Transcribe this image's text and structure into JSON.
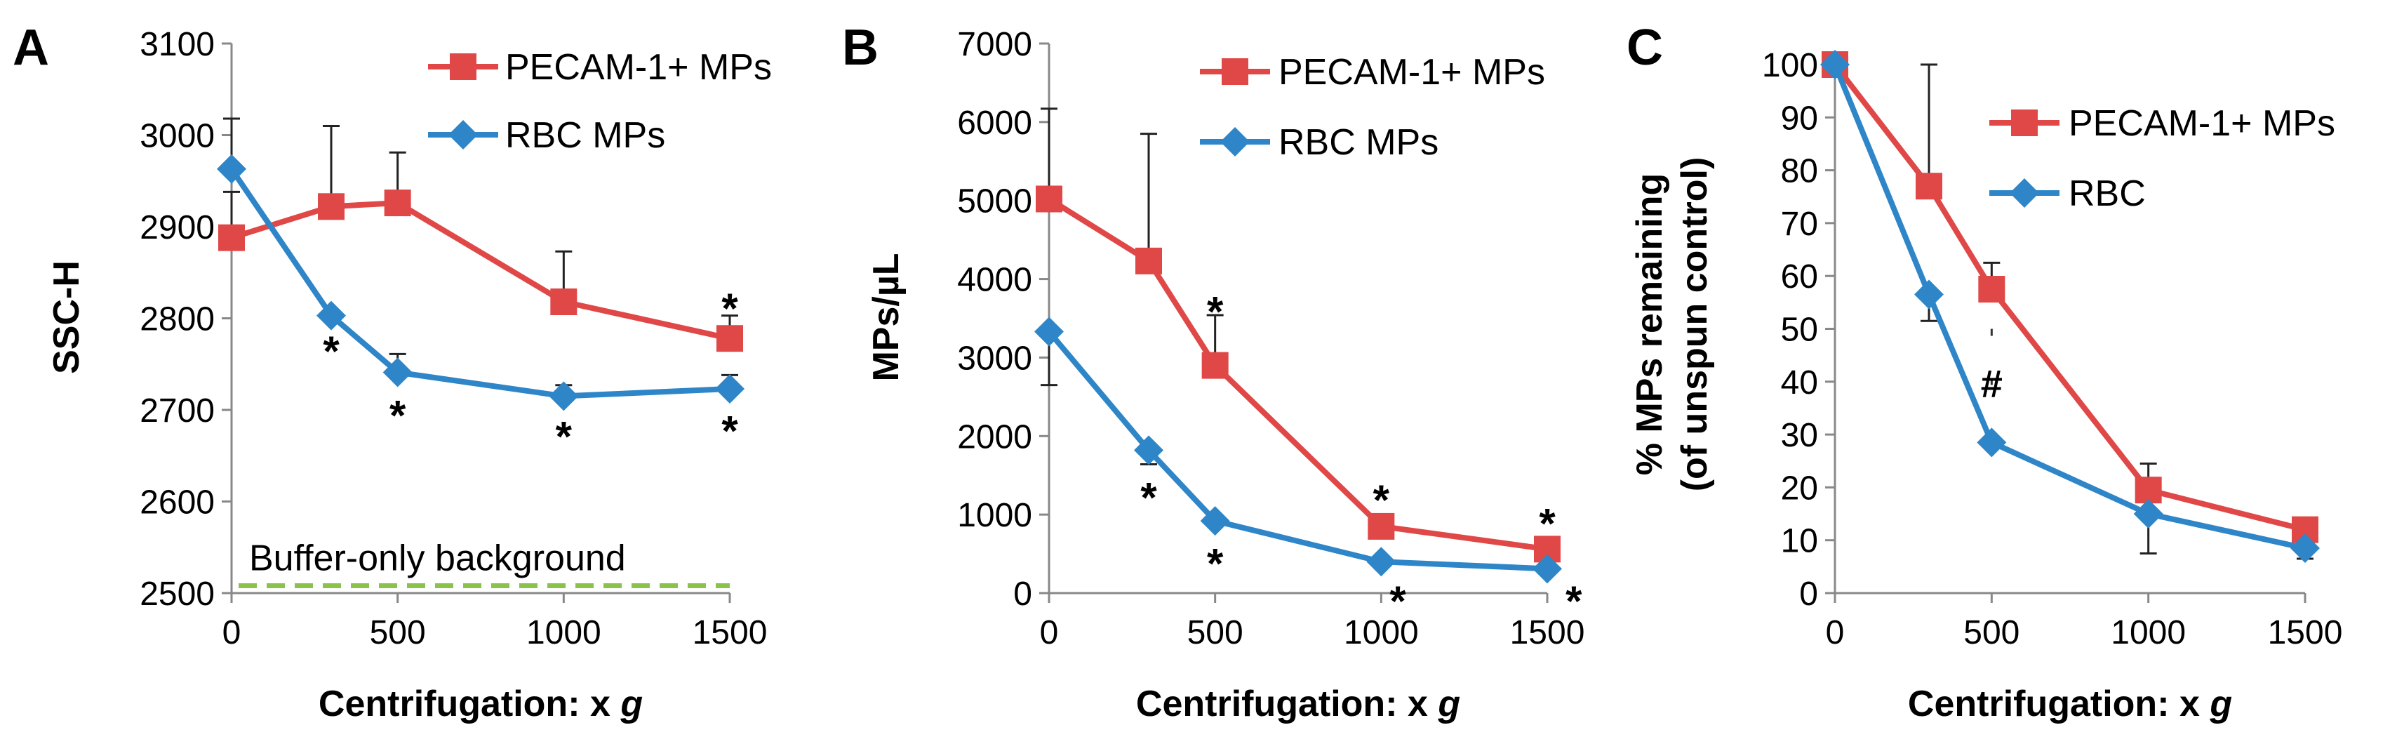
{
  "chart_data": [
    {
      "type": "line",
      "panel_label": "A",
      "title": "",
      "xlabel": "Centrifugation: x ",
      "xlabel_italic": "g",
      "ylabel": "SSC-H",
      "x": [
        0,
        300,
        500,
        1000,
        1500
      ],
      "xlim": [
        0,
        1500
      ],
      "xticks": [
        "0",
        "500",
        "1000",
        "1500"
      ],
      "xtick_values": [
        0,
        500,
        1000,
        1500
      ],
      "ylim": [
        2500,
        3100
      ],
      "yticks": [
        "2500",
        "2600",
        "2700",
        "2800",
        "2900",
        "3000",
        "3100"
      ],
      "ytick_values": [
        2500,
        2600,
        2700,
        2800,
        2900,
        3000,
        3100
      ],
      "legend_position": "top-right",
      "series": [
        {
          "name": "PECAM-1+ MPs",
          "color": "#e04848",
          "marker": "square",
          "values": [
            2888,
            2922,
            2926,
            2818,
            2778
          ],
          "err_up": [
            50,
            88,
            55,
            55,
            25
          ],
          "err_down": [
            0,
            0,
            0,
            0,
            0
          ]
        },
        {
          "name": "RBC MPs",
          "color": "#2e86c8",
          "marker": "diamond",
          "values": [
            2963,
            2803,
            2741,
            2715,
            2723
          ],
          "err_up": [
            55,
            0,
            20,
            12,
            15
          ],
          "err_down": [
            0,
            0,
            0,
            0,
            0
          ]
        }
      ],
      "annotations": [
        {
          "text": "*",
          "x": 300,
          "y": 2765
        },
        {
          "text": "*",
          "x": 500,
          "y": 2695
        },
        {
          "text": "*",
          "x": 1000,
          "y": 2672
        },
        {
          "text": "*",
          "x": 1500,
          "y": 2812
        },
        {
          "text": "*",
          "x": 1500,
          "y": 2678
        }
      ],
      "reference_line": {
        "label": "Buffer-only background",
        "y": 2508,
        "color": "#8bc34a",
        "style": "dashed"
      }
    },
    {
      "type": "line",
      "panel_label": "B",
      "title": "",
      "xlabel": "Centrifugation: x ",
      "xlabel_italic": "g",
      "ylabel": "MPs/µL",
      "x": [
        0,
        300,
        500,
        1000,
        1500
      ],
      "xlim": [
        0,
        1500
      ],
      "xticks": [
        "0",
        "500",
        "1000",
        "1500"
      ],
      "xtick_values": [
        0,
        500,
        1000,
        1500
      ],
      "ylim": [
        0,
        7000
      ],
      "yticks": [
        "0",
        "1000",
        "2000",
        "3000",
        "4000",
        "5000",
        "6000",
        "7000"
      ],
      "ytick_values": [
        0,
        1000,
        2000,
        3000,
        4000,
        5000,
        6000,
        7000
      ],
      "legend_position": "top-right",
      "series": [
        {
          "name": "PECAM-1+ MPs",
          "color": "#e04848",
          "marker": "square",
          "values": [
            5020,
            4230,
            2900,
            850,
            560
          ],
          "err_up": [
            1150,
            1620,
            640,
            0,
            0
          ],
          "err_down": [
            0,
            0,
            0,
            0,
            0
          ]
        },
        {
          "name": "RBC MPs",
          "color": "#2e86c8",
          "marker": "diamond",
          "values": [
            3330,
            1820,
            920,
            400,
            310
          ],
          "err_up": [
            0,
            0,
            0,
            0,
            0
          ],
          "err_down": [
            680,
            180,
            0,
            0,
            0
          ]
        }
      ],
      "annotations": [
        {
          "text": "*",
          "x": 300,
          "y": 1230
        },
        {
          "text": "*",
          "x": 500,
          "y": 3600
        },
        {
          "text": "*",
          "x": 500,
          "y": 390
        },
        {
          "text": "*",
          "x": 1000,
          "y": 1200
        },
        {
          "text": "*",
          "x": 1050,
          "y": -90
        },
        {
          "text": "*",
          "x": 1500,
          "y": 900
        },
        {
          "text": "*",
          "x": 1580,
          "y": -90
        }
      ]
    },
    {
      "type": "line",
      "panel_label": "C",
      "title": "",
      "xlabel": "Centrifugation: x ",
      "xlabel_italic": "g",
      "ylabel": "% MPs remaining",
      "ylabel2": "(of unspun control)",
      "x": [
        0,
        300,
        500,
        1000,
        1500
      ],
      "xlim": [
        0,
        1500
      ],
      "xticks": [
        "0",
        "500",
        "1000",
        "1500"
      ],
      "xtick_values": [
        0,
        500,
        1000,
        1500
      ],
      "ylim": [
        0,
        100
      ],
      "yticks": [
        "0",
        "10",
        "20",
        "30",
        "40",
        "50",
        "60",
        "70",
        "80",
        "90",
        "100"
      ],
      "ytick_values": [
        0,
        10,
        20,
        30,
        40,
        50,
        60,
        70,
        80,
        90,
        100
      ],
      "legend_position": "top-right",
      "series": [
        {
          "name": "PECAM-1+ MPs",
          "color": "#e04848",
          "marker": "square",
          "values": [
            100,
            77,
            57.5,
            19.5,
            12
          ],
          "err_up": [
            0,
            23,
            5,
            5,
            0
          ],
          "err_down": [
            0,
            0,
            0,
            0,
            0
          ]
        },
        {
          "name": "RBC",
          "color": "#2e86c8",
          "marker": "diamond",
          "values": [
            100,
            56.5,
            28.5,
            15,
            8.5
          ],
          "err_up": [
            0,
            0,
            0,
            0,
            0
          ],
          "err_down": [
            0,
            5,
            0,
            7.5,
            2
          ]
        }
      ],
      "annotations": [
        {
          "text": "#",
          "x": 500,
          "y": 40
        }
      ],
      "significance_bar": {
        "x": 500,
        "y_from": 50,
        "y_to": 34
      }
    }
  ]
}
